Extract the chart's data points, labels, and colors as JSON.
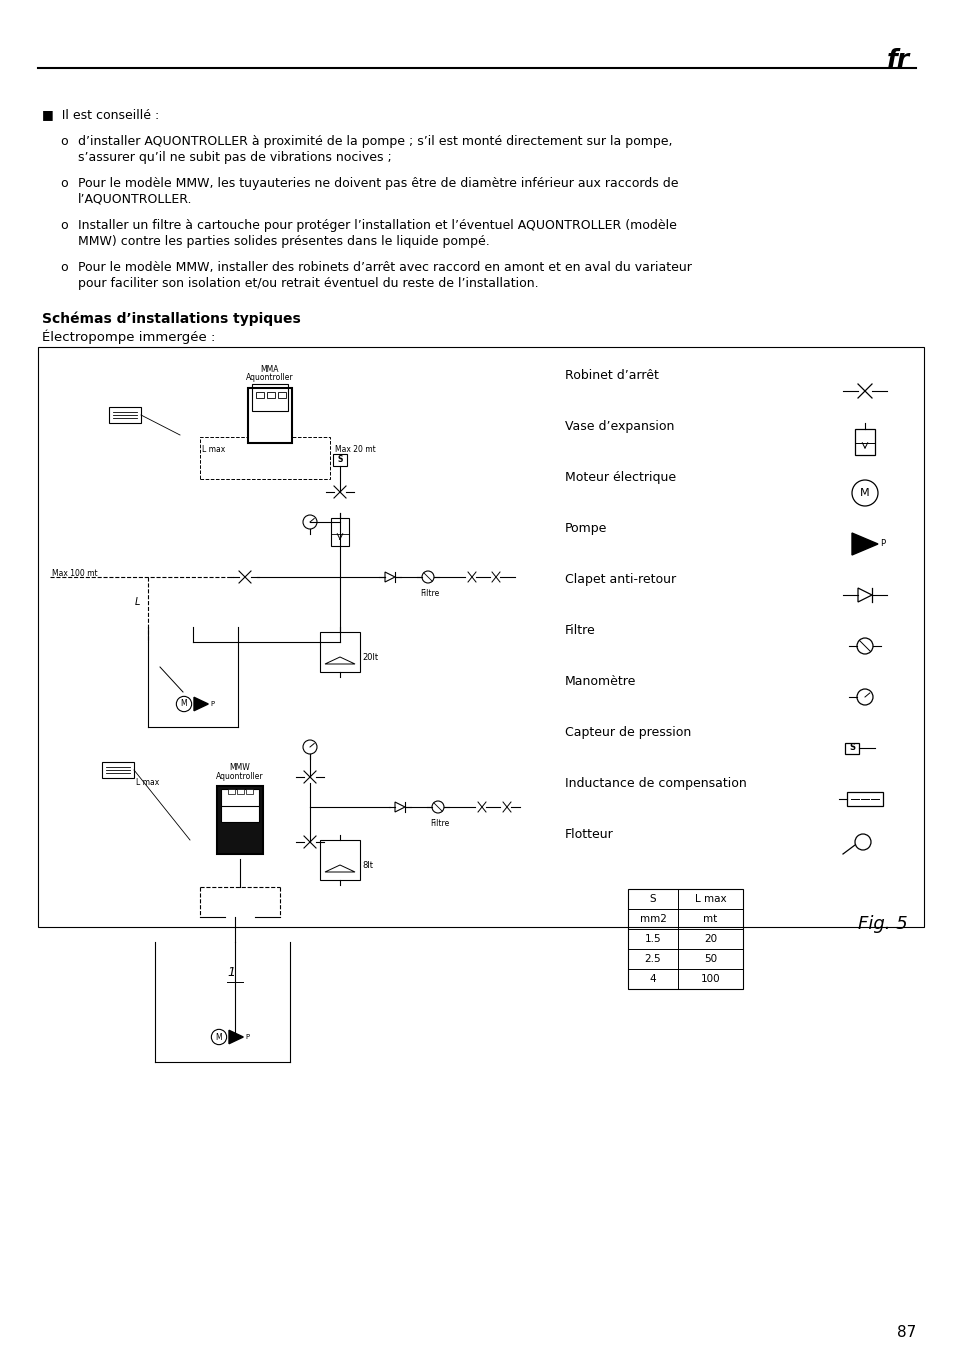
{
  "bg_color": "#ffffff",
  "page_number": "87",
  "header_text": "fr",
  "title_bold": "Schémas d’installations typiques",
  "subtitle": "Électropompe immergée :",
  "fig_label": "Fig. 5",
  "bullet_header": "■  Il est conseillé :",
  "bullet_items": [
    "d’installer AQUONTROLLER à proximité de la pompe ; s’il est monté directement sur la pompe,\ns’assurer qu’il ne subit pas de vibrations nocives ;",
    "Pour le modèle MMW, les tuyauteries ne doivent pas être de diamètre inférieur aux raccords de\nl’AQUONTROLLER.",
    "Installer un filtre à cartouche pour protéger l’installation et l’éventuel AQUONTROLLER (modèle\nMMW) contre les parties solides présentes dans le liquide pompé.",
    "Pour le modèle MMW, installer des robinets d’arrêt avec raccord en amont et en aval du variateur\npour faciliter son isolation et/ou retrait éventuel du reste de l’installation."
  ],
  "legend_items": [
    "Robinet d’arrêt",
    "Vase d’expansion",
    "Moteur électrique",
    "Pompe",
    "Clapet anti-retour",
    "Filtre",
    "Manomètre",
    "Capteur de pression",
    "Inductance de compensation",
    "Flotteur"
  ],
  "table_headers": [
    "S",
    "L max"
  ],
  "table_subheaders": [
    "mm2",
    "mt"
  ],
  "table_rows": [
    [
      "1.5",
      "20"
    ],
    [
      "2.5",
      "50"
    ],
    [
      "4",
      "100"
    ]
  ]
}
